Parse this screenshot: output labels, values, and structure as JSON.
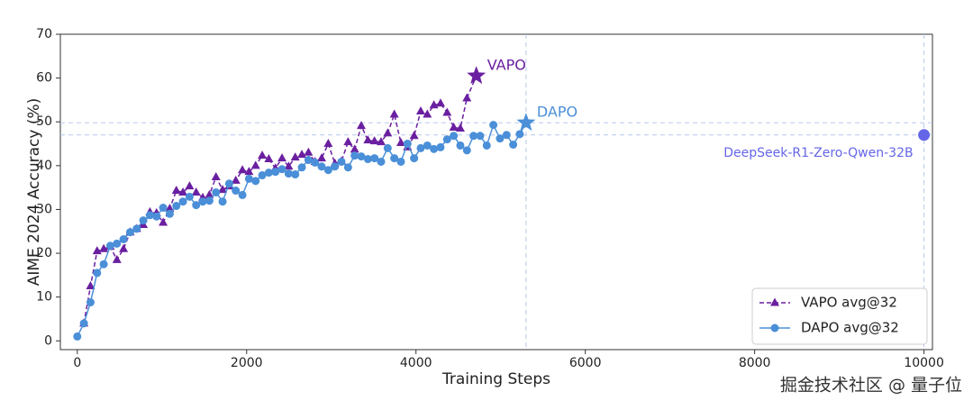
{
  "chart_data": {
    "type": "line",
    "xlabel": "Training Steps",
    "ylabel": "AIME 2024 Accuracy (%)",
    "xlim": [
      -200,
      10100
    ],
    "ylim": [
      -2,
      70
    ],
    "xticks": [
      0,
      2000,
      4000,
      6000,
      8000,
      10000
    ],
    "yticks": [
      0,
      10,
      20,
      30,
      40,
      50,
      60,
      70
    ],
    "legend": "lower right",
    "series": [
      {
        "name": "VAPO avg@32",
        "color": "#6a1fa0",
        "marker": "triangle",
        "dash": true,
        "x": [
          78,
          156,
          234,
          312,
          390,
          468,
          546,
          624,
          702,
          780,
          858,
          936,
          1014,
          1092,
          1170,
          1248,
          1326,
          1404,
          1482,
          1560,
          1638,
          1716,
          1794,
          1872,
          1950,
          2028,
          2106,
          2184,
          2262,
          2340,
          2418,
          2496,
          2574,
          2652,
          2730,
          2808,
          2886,
          2964,
          3042,
          3120,
          3198,
          3276,
          3354,
          3432,
          3510,
          3588,
          3666,
          3744,
          3822,
          3900,
          3978,
          4056,
          4134,
          4212,
          4290,
          4368,
          4446,
          4524,
          4602
        ],
        "values": [
          4,
          12.5,
          20.5,
          21,
          21.5,
          18.5,
          21,
          24.8,
          25.6,
          26.5,
          29.4,
          29.2,
          27,
          30.2,
          34.3,
          33.9,
          35.3,
          33.9,
          32.7,
          33.3,
          37.4,
          34.5,
          35.3,
          36.6,
          39,
          38.6,
          40,
          42.3,
          41.5,
          39.4,
          41.7,
          39.8,
          41.9,
          42.5,
          43,
          40.9,
          41.7,
          45,
          40.5,
          41,
          45.4,
          43.7,
          49.1,
          45.8,
          45.6,
          45.4,
          47.4,
          51.7,
          45.2,
          44.2,
          46.8,
          52.4,
          51.7,
          53.8,
          54.2,
          52.1,
          48.7,
          48.5,
          55.4
        ],
        "end": {
          "label": "VAPO",
          "x": 4713,
          "y": 60.5
        }
      },
      {
        "name": "DAPO avg@32",
        "color": "#4a8fd8",
        "marker": "circle",
        "dash": false,
        "x": [
          0,
          78,
          156,
          234,
          312,
          390,
          468,
          546,
          624,
          702,
          780,
          858,
          936,
          1014,
          1092,
          1170,
          1248,
          1326,
          1404,
          1482,
          1560,
          1638,
          1716,
          1794,
          1872,
          1950,
          2028,
          2106,
          2184,
          2262,
          2340,
          2418,
          2496,
          2574,
          2652,
          2730,
          2808,
          2886,
          2964,
          3042,
          3120,
          3198,
          3276,
          3354,
          3432,
          3510,
          3588,
          3666,
          3744,
          3822,
          3900,
          3978,
          4056,
          4134,
          4212,
          4290,
          4368,
          4446,
          4524,
          4602,
          4680,
          4758,
          4836,
          4914,
          4992,
          5070,
          5148,
          5226
        ],
        "values": [
          1,
          4,
          8.8,
          15.5,
          17.5,
          21.7,
          22.2,
          23.2,
          24.8,
          25.6,
          27.5,
          28.7,
          28.4,
          30.4,
          29,
          30.8,
          31.8,
          32.9,
          31,
          31.8,
          32,
          33.9,
          31.8,
          35.9,
          34.3,
          33.3,
          37,
          36.5,
          37.8,
          38.4,
          38.6,
          39.2,
          38.2,
          38,
          39.6,
          41.3,
          40.7,
          39.8,
          39,
          39.8,
          40.9,
          39.6,
          42.3,
          42.1,
          41.5,
          41.7,
          40.9,
          44,
          41.7,
          40.9,
          45,
          41.7,
          44,
          44.6,
          43.8,
          44.2,
          46,
          46.8,
          44.6,
          43.5,
          46.8,
          46.8,
          44.6,
          49.3,
          46.2,
          47,
          44.8,
          47.2
        ],
        "end": {
          "label": "DAPO",
          "x": 5300,
          "y": 49.8
        }
      }
    ],
    "baseline": {
      "label": "DeepSeek-R1-Zero-Qwen-32B",
      "x": 10000,
      "y": 47,
      "color": "#6565e8"
    },
    "watermark": "掘金技术社区 @ 量子位"
  }
}
